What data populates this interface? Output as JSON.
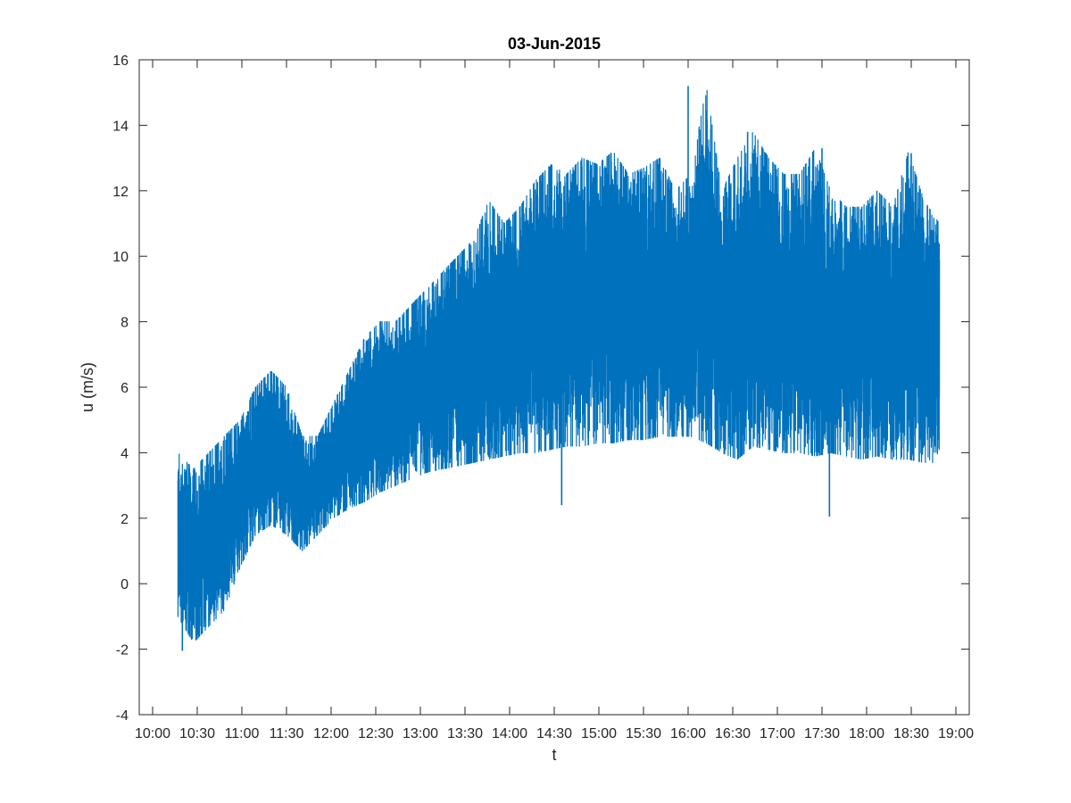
{
  "chart_data": {
    "type": "line",
    "title": "03-Jun-2015",
    "xlabel": "t",
    "ylabel": "u (m/s)",
    "xlim": [
      "09:51",
      "19:09"
    ],
    "ylim": [
      -4,
      16
    ],
    "x_ticks": [
      "10:00",
      "10:30",
      "11:00",
      "11:30",
      "12:00",
      "12:30",
      "13:00",
      "13:30",
      "14:00",
      "14:30",
      "15:00",
      "15:30",
      "16:00",
      "16:30",
      "17:00",
      "17:30",
      "18:00",
      "18:30",
      "19:00"
    ],
    "y_ticks": [
      -4,
      -2,
      0,
      2,
      4,
      6,
      8,
      10,
      12,
      14,
      16
    ],
    "grid": false,
    "line_color": "#0072BD",
    "series": [
      {
        "x_start": "10:17",
        "x_end": "18:49",
        "sample_step_minutes": 2,
        "envelope_min": [
          -1.0,
          -1.8,
          -1.3,
          -0.8,
          0.5,
          1.5,
          1.8,
          1.5,
          1.0,
          1.5,
          2.0,
          2.3,
          2.5,
          2.8,
          3.0,
          3.2,
          3.4,
          3.5,
          3.6,
          3.7,
          3.8,
          3.9,
          4.0,
          4.0,
          4.1,
          4.2,
          4.2,
          4.3,
          4.3,
          4.4,
          4.4,
          4.5,
          4.5,
          4.5,
          4.3,
          4.0,
          3.8,
          4.2,
          4.1,
          4.0,
          4.0,
          3.9,
          4.0,
          3.9,
          3.8,
          3.9,
          3.8,
          3.8,
          3.7,
          3.7
        ],
        "envelope_max": [
          4.0,
          3.5,
          4.0,
          4.5,
          5.0,
          6.0,
          6.5,
          6.0,
          4.5,
          4.5,
          5.5,
          6.5,
          7.5,
          8.0,
          8.0,
          8.5,
          9.0,
          9.5,
          10.0,
          10.5,
          11.7,
          11.0,
          11.5,
          12.3,
          12.8,
          12.5,
          13.0,
          12.8,
          13.2,
          12.5,
          12.7,
          13.0,
          12.0,
          12.5,
          15.2,
          12.0,
          13.0,
          13.8,
          13.0,
          12.5,
          12.5,
          13.3,
          12.0,
          11.5,
          11.5,
          12.0,
          11.5,
          13.2,
          11.7,
          11.0
        ],
        "spikes": [
          [
            "16:00",
            15.2
          ],
          [
            "16:40",
            13.8
          ],
          [
            "17:30",
            13.3
          ],
          [
            "18:30",
            13.15
          ],
          [
            "17:35",
            2.05
          ],
          [
            "14:35",
            2.4
          ],
          [
            "10:20",
            -2.05
          ]
        ]
      }
    ]
  }
}
